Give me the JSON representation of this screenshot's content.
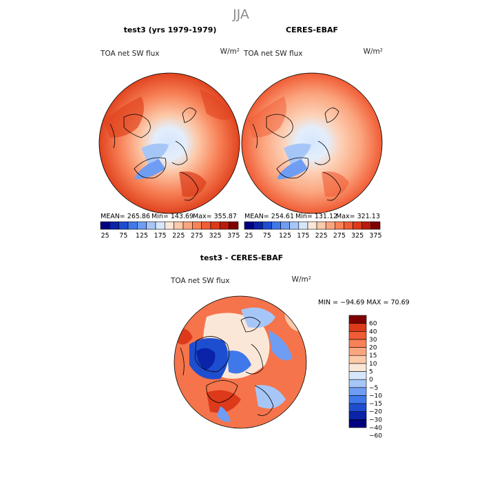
{
  "figure": {
    "season": "JJA"
  },
  "colors": {
    "abs_scale": [
      "#00007f",
      "#0a23a8",
      "#1e4ed0",
      "#3f78ea",
      "#6f9df4",
      "#a7c6f8",
      "#d6e6fb",
      "#fbe7d8",
      "#fcc9a9",
      "#fba57e",
      "#f88258",
      "#f05c35",
      "#dc3a1a",
      "#b81c0c",
      "#7f0000"
    ],
    "diff_scale": [
      "#00007f",
      "#0a23a8",
      "#1e4ed0",
      "#3f78ea",
      "#6f9df4",
      "#a7c6f8",
      "#d6e6fb",
      "#fbe7d8",
      "#fcc9a9",
      "#fba57e",
      "#f88258",
      "#f05c35",
      "#dc3a1a",
      "#7f0000"
    ],
    "coastline": "#000000"
  },
  "chart_data": [
    {
      "type": "heatmap",
      "name": "test3 (yrs 1979-1979)",
      "variable": "TOA net SW flux",
      "units": "W/m²",
      "projection": "north polar stereographic",
      "stats": {
        "mean": "MEAN= 265.86",
        "min": "Min= 143.69",
        "max": "Max= 355.87"
      },
      "colorbar": {
        "orientation": "horizontal",
        "levels": [
          25,
          50,
          75,
          100,
          125,
          150,
          175,
          200,
          225,
          250,
          275,
          300,
          325,
          350,
          375
        ],
        "tick_labels": [
          "25",
          "75",
          "125",
          "175",
          "225",
          "275",
          "325",
          "375"
        ]
      }
    },
    {
      "type": "heatmap",
      "name": "CERES-EBAF",
      "variable": "TOA net SW flux",
      "units": "W/m²",
      "projection": "north polar stereographic",
      "stats": {
        "mean": "MEAN= 254.61",
        "min": "Min= 131.12",
        "max": "Max= 321.13"
      },
      "colorbar": {
        "orientation": "horizontal",
        "levels": [
          25,
          50,
          75,
          100,
          125,
          150,
          175,
          200,
          225,
          250,
          275,
          300,
          325,
          350,
          375
        ],
        "tick_labels": [
          "25",
          "75",
          "125",
          "175",
          "225",
          "275",
          "325",
          "375"
        ]
      }
    },
    {
      "type": "heatmap",
      "name": "test3 - CERES-EBAF",
      "variable": "TOA net SW flux",
      "units": "W/m²",
      "projection": "north polar stereographic",
      "stats": {
        "minmax": "MIN = −94.69 MAX =  70.69"
      },
      "colorbar": {
        "orientation": "vertical",
        "levels": [
          -60,
          -40,
          -30,
          -20,
          -15,
          -10,
          -5,
          0,
          5,
          10,
          15,
          20,
          30,
          40,
          60
        ],
        "tick_labels": [
          "60",
          "40",
          "30",
          "20",
          "15",
          "10",
          "5",
          "0",
          "−5",
          "−10",
          "−15",
          "−20",
          "−30",
          "−40",
          "−60"
        ]
      }
    }
  ]
}
